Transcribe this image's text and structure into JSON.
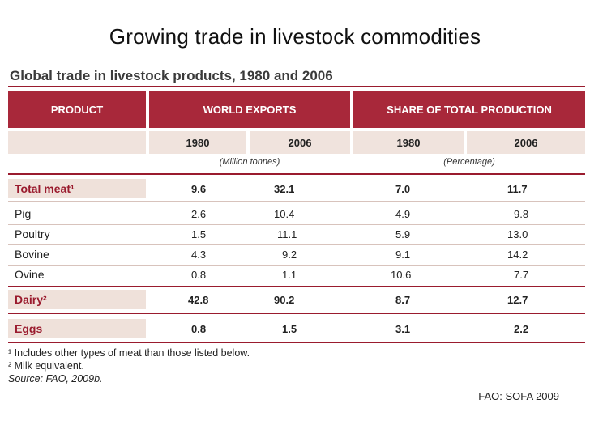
{
  "slide_title": "Growing trade in livestock commodities",
  "table_title": "Global trade in livestock products, 1980 and 2006",
  "headers": {
    "product": "PRODUCT",
    "world_exports": "WORLD EXPORTS",
    "share": "SHARE OF TOTAL PRODUCTION"
  },
  "years": {
    "e1980": "1980",
    "e2006": "2006",
    "s1980": "1980",
    "s2006": "2006"
  },
  "units": {
    "exports": "(Million tonnes)",
    "share": "(Percentage)"
  },
  "rows": [
    {
      "label": "Total meat¹",
      "highlight": true,
      "e1980": "9.6",
      "e2006": "32.1",
      "s1980": "7.0",
      "s2006": "11.7"
    },
    {
      "label": "Pig",
      "highlight": false,
      "e1980": "2.6",
      "e2006": "10.4",
      "s1980": "4.9",
      "s2006": "9.8"
    },
    {
      "label": "Poultry",
      "highlight": false,
      "e1980": "1.5",
      "e2006": "11.1",
      "s1980": "5.9",
      "s2006": "13.0"
    },
    {
      "label": "Bovine",
      "highlight": false,
      "e1980": "4.3",
      "e2006": "9.2",
      "s1980": "9.1",
      "s2006": "14.2"
    },
    {
      "label": "Ovine",
      "highlight": false,
      "e1980": "0.8",
      "e2006": "1.1",
      "s1980": "10.6",
      "s2006": "7.7"
    },
    {
      "label": "Dairy²",
      "highlight": true,
      "e1980": "42.8",
      "e2006": "90.2",
      "s1980": "8.7",
      "s2006": "12.7"
    },
    {
      "label": "Eggs",
      "highlight": true,
      "e1980": "0.8",
      "e2006": "1.5",
      "s1980": "3.1",
      "s2006": "2.2"
    }
  ],
  "notes": {
    "n1": "¹ Includes other types of meat than those listed below.",
    "n2": "² Milk equivalent.",
    "source": "Source: FAO, 2009b."
  },
  "credit": "FAO: SOFA 2009"
}
